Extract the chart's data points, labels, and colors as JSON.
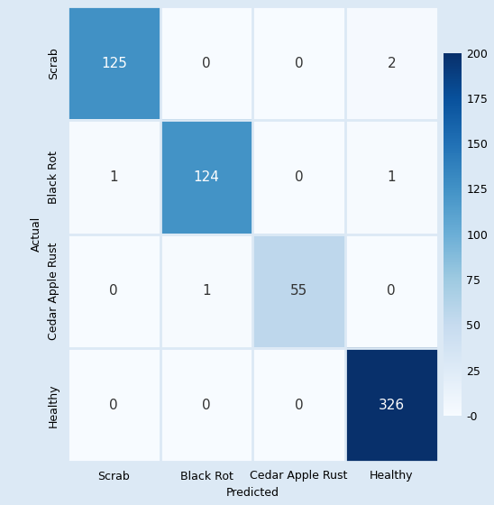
{
  "matrix": [
    [
      125,
      0,
      0,
      2
    ],
    [
      1,
      124,
      0,
      1
    ],
    [
      0,
      1,
      55,
      0
    ],
    [
      0,
      0,
      0,
      326
    ]
  ],
  "classes": [
    "Scrab",
    "Black Rot",
    "Cedar Apple Rust",
    "Healthy"
  ],
  "xlabel": "Predicted",
  "ylabel": "Actual",
  "cmap": "Blues",
  "vmin": 0,
  "vmax": 200,
  "colorbar_ticks": [
    0,
    25,
    50,
    75,
    100,
    125,
    150,
    175,
    200
  ],
  "colorbar_tick_labels": [
    "-0",
    "25",
    "50",
    "75",
    "100",
    "125",
    "150",
    "175",
    "200"
  ],
  "figsize": [
    5.48,
    5.6
  ],
  "dpi": 100,
  "background_color": "#ddeeff",
  "text_color_light": "white",
  "text_color_dark": "#333333",
  "text_threshold": 0.45
}
